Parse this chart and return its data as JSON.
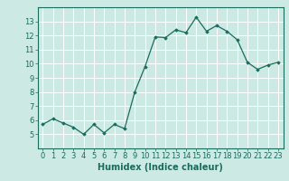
{
  "x": [
    0,
    1,
    2,
    3,
    4,
    5,
    6,
    7,
    8,
    9,
    10,
    11,
    12,
    13,
    14,
    15,
    16,
    17,
    18,
    19,
    20,
    21,
    22,
    23
  ],
  "y": [
    5.7,
    6.1,
    5.8,
    5.5,
    5.0,
    5.7,
    5.1,
    5.7,
    5.4,
    8.0,
    9.8,
    11.9,
    11.85,
    12.4,
    12.2,
    13.3,
    12.3,
    12.7,
    12.3,
    11.7,
    10.1,
    9.6,
    9.9,
    10.1
  ],
  "line_color": "#1a6b5e",
  "marker": "D",
  "marker_size": 1.8,
  "bg_color": "#cce9e4",
  "grid_color": "#ffffff",
  "xlabel": "Humidex (Indice chaleur)",
  "xlim": [
    -0.5,
    23.5
  ],
  "ylim": [
    4,
    14
  ],
  "yticks": [
    5,
    6,
    7,
    8,
    9,
    10,
    11,
    12,
    13
  ],
  "xticks": [
    0,
    1,
    2,
    3,
    4,
    5,
    6,
    7,
    8,
    9,
    10,
    11,
    12,
    13,
    14,
    15,
    16,
    17,
    18,
    19,
    20,
    21,
    22,
    23
  ],
  "tick_color": "#1a6b5e",
  "xlabel_fontsize": 7,
  "tick_fontsize": 6,
  "spine_color": "#1a6b5e",
  "linewidth": 0.9
}
